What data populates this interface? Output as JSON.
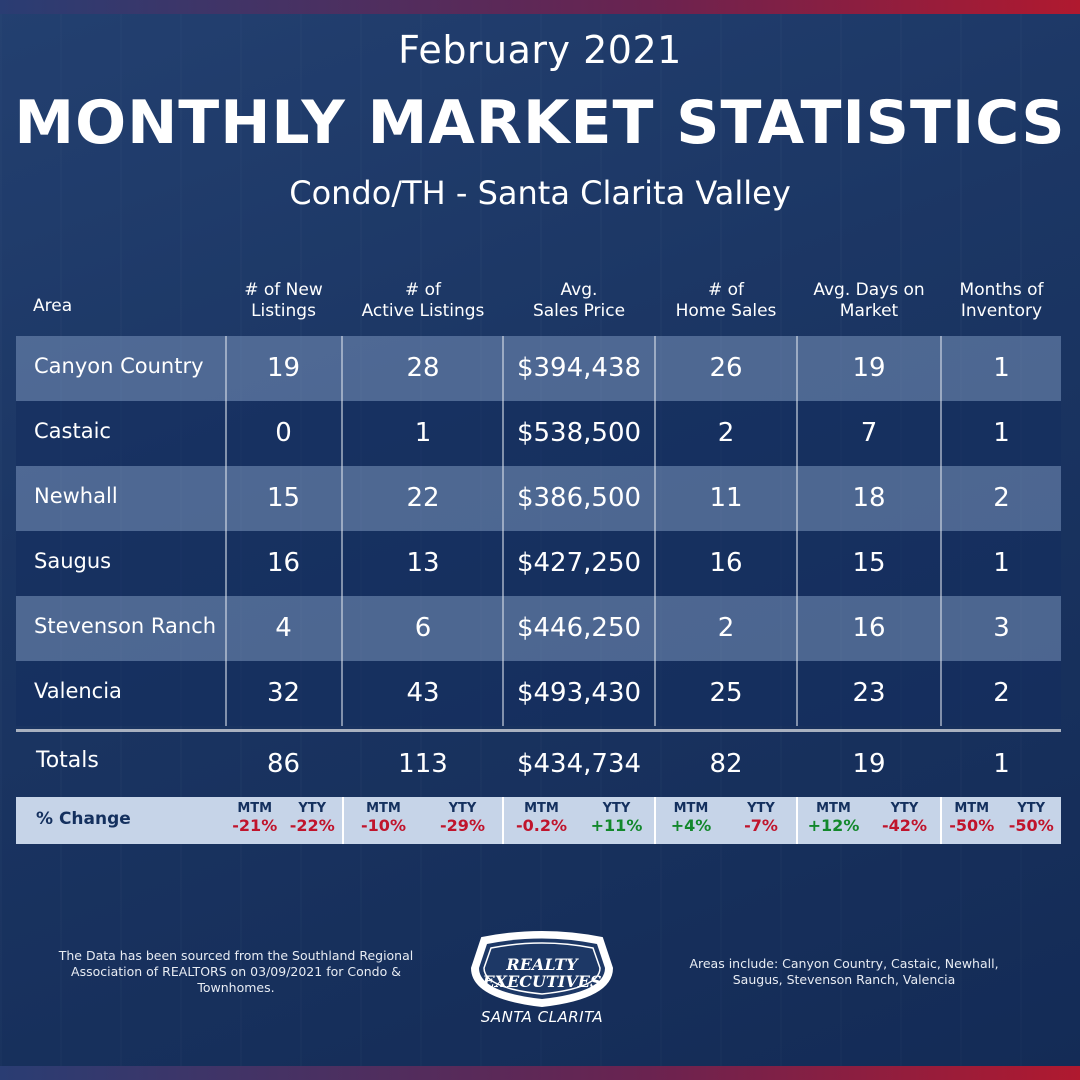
{
  "header": {
    "date": "February 2021",
    "title": "MONTHLY MARKET STATISTICS",
    "region": "Condo/TH - Santa Clarita Valley"
  },
  "table": {
    "columns": {
      "area": "Area",
      "new_listings": [
        "# of New",
        "Listings"
      ],
      "active_listings": [
        "# of",
        "Active Listings"
      ],
      "avg_price": [
        "Avg.",
        "Sales Price"
      ],
      "home_sales": [
        "# of",
        "Home Sales"
      ],
      "days_on_market": [
        "Avg. Days on",
        "Market"
      ],
      "months_inventory": [
        "Months of",
        "Inventory"
      ]
    },
    "rows": [
      {
        "area": "Canyon Country",
        "new": "19",
        "active": "28",
        "price": "$394,438",
        "sales": "26",
        "days": "19",
        "months": "1"
      },
      {
        "area": "Castaic",
        "new": "0",
        "active": "1",
        "price": "$538,500",
        "sales": "2",
        "days": "7",
        "months": "1"
      },
      {
        "area": "Newhall",
        "new": "15",
        "active": "22",
        "price": "$386,500",
        "sales": "11",
        "days": "18",
        "months": "2"
      },
      {
        "area": "Saugus",
        "new": "16",
        "active": "13",
        "price": "$427,250",
        "sales": "16",
        "days": "15",
        "months": "1"
      },
      {
        "area": "Stevenson Ranch",
        "new": "4",
        "active": "6",
        "price": "$446,250",
        "sales": "2",
        "days": "16",
        "months": "3"
      },
      {
        "area": "Valencia",
        "new": "32",
        "active": "43",
        "price": "$493,430",
        "sales": "25",
        "days": "23",
        "months": "2"
      }
    ],
    "totals": {
      "label": "Totals",
      "new": "86",
      "active": "113",
      "price": "$434,734",
      "sales": "82",
      "days": "19",
      "months": "1"
    },
    "change": {
      "label": "% Change",
      "mtm_label": "MTM",
      "yty_label": "YTY",
      "groups": [
        {
          "mtm": "-21%",
          "yty": "-22%",
          "mtm_dir": "neg",
          "yty_dir": "neg"
        },
        {
          "mtm": "-10%",
          "yty": "-29%",
          "mtm_dir": "neg",
          "yty_dir": "neg"
        },
        {
          "mtm": "-0.2%",
          "yty": "+11%",
          "mtm_dir": "neg",
          "yty_dir": "pos"
        },
        {
          "mtm": "+4%",
          "yty": "-7%",
          "mtm_dir": "pos",
          "yty_dir": "neg"
        },
        {
          "mtm": "+12%",
          "yty": "-42%",
          "mtm_dir": "pos",
          "yty_dir": "neg"
        },
        {
          "mtm": "-50%",
          "yty": "-50%",
          "mtm_dir": "neg",
          "yty_dir": "neg"
        }
      ]
    }
  },
  "footer": {
    "source_note": "The Data has been sourced from the Southland Regional Association of REALTORS on 03/09/2021 for Condo & Townhomes.",
    "areas_note": "Areas include: Canyon Country, Castaic, Newhall, Saugus, Stevenson Ranch, Valencia",
    "logo_line1": "REALTY",
    "logo_line2": "EXECUTIVES",
    "logo_location": "SANTA CLARITA"
  },
  "colors": {
    "background": "#1d3866",
    "negative": "#c0142c",
    "positive": "#13882c",
    "change_bar": "#c6d4e8"
  }
}
